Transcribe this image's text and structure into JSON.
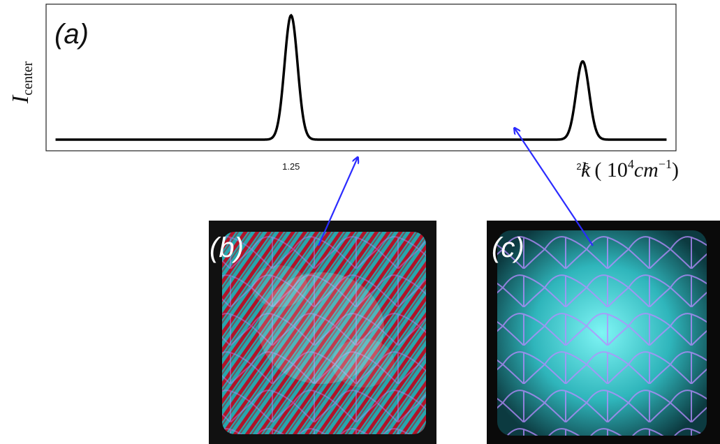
{
  "chart_data": {
    "type": "line",
    "panel_label": "(a)",
    "ylabel_main": "I",
    "ylabel_sub": "center",
    "xlabel_var": "k",
    "xlabel_unit": "( 10",
    "xlabel_exp": "4",
    "xlabel_cm": "cm",
    "xlabel_cm_exp": "−1",
    "xlabel_close": ")",
    "x_ticks": [
      1.25,
      2.5
    ],
    "x_tick_labels": [
      "1.25",
      "2.5"
    ],
    "xlim": [
      0.2,
      2.9
    ],
    "ylim": [
      0,
      1.0
    ],
    "baseline": 0.02,
    "peaks": [
      {
        "center": 1.25,
        "height": 1.0,
        "width": 0.028
      },
      {
        "center": 2.5,
        "height": 0.63,
        "width": 0.028
      }
    ],
    "line_color": "#000000"
  },
  "panels": {
    "b_label": "(b)",
    "c_label": "(c)"
  },
  "arrow_color": "#2b2bff"
}
